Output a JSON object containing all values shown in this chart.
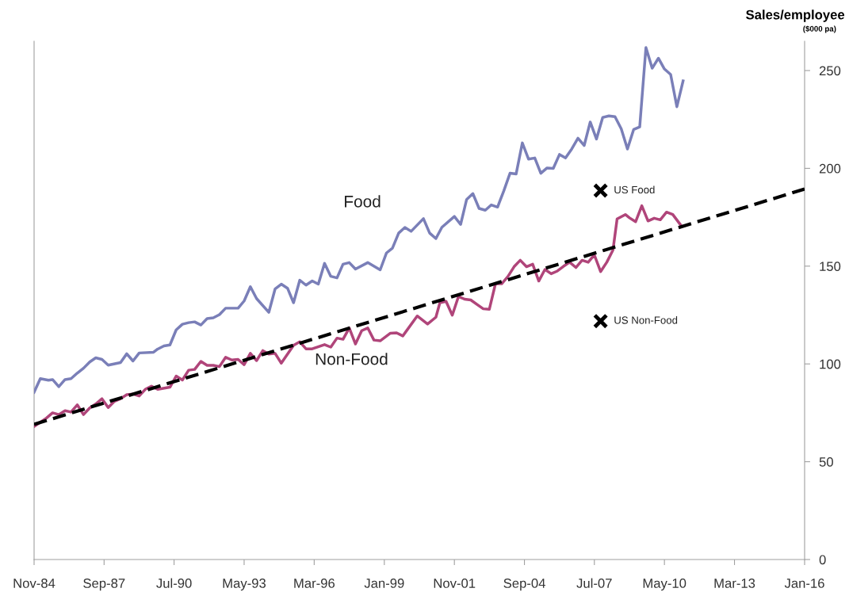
{
  "chart_data": {
    "type": "line",
    "ylabel": "Sales/employee",
    "annotations": [
      "($000 pa)"
    ],
    "xlim": [
      "1984-11",
      "2016-01"
    ],
    "xticks": [
      {
        "value": "1984-11",
        "label": "Nov-84"
      },
      {
        "value": "1987-09",
        "label": "Sep-87"
      },
      {
        "value": "1990-07",
        "label": "Jul-90"
      },
      {
        "value": "1993-05",
        "label": "May-93"
      },
      {
        "value": "1996-03",
        "label": "Mar-96"
      },
      {
        "value": "1999-01",
        "label": "Jan-99"
      },
      {
        "value": "2001-11",
        "label": "Nov-01"
      },
      {
        "value": "2004-09",
        "label": "Sep-04"
      },
      {
        "value": "2007-07",
        "label": "Jul-07"
      },
      {
        "value": "2010-05",
        "label": "May-10"
      },
      {
        "value": "2013-03",
        "label": "Mar-13"
      },
      {
        "value": "2016-01",
        "label": "Jan-16"
      }
    ],
    "ylim": [
      0,
      265
    ],
    "yticks": [
      0,
      50,
      100,
      150,
      200,
      250
    ],
    "grid": false,
    "series": [
      {
        "name": "Food",
        "color": "#7a7fb8",
        "x": [
          "1984-11",
          "1985-02",
          "1985-06",
          "1985-08",
          "1985-11",
          "1986-02",
          "1986-05",
          "1986-08",
          "1986-11",
          "1987-02",
          "1987-05",
          "1987-08",
          "1987-11",
          "1988-05",
          "1988-08",
          "1988-11",
          "1989-02",
          "1989-09",
          "1989-11",
          "1990-02",
          "1990-05",
          "1990-08",
          "1990-11",
          "1991-02",
          "1991-05",
          "1991-08",
          "1991-11",
          "1992-02",
          "1992-05",
          "1992-08",
          "1993-02",
          "1993-05",
          "1993-08",
          "1993-11",
          "1994-05",
          "1994-08",
          "1994-11",
          "1995-02",
          "1995-05",
          "1995-08",
          "1995-11",
          "1996-02",
          "1996-05",
          "1996-08",
          "1996-11",
          "1997-02",
          "1997-05",
          "1997-08",
          "1997-11",
          "1998-05",
          "1998-11",
          "1999-02",
          "1999-05",
          "1999-08",
          "1999-11",
          "2000-02",
          "2000-08",
          "2000-11",
          "2001-02",
          "2001-05",
          "2001-11",
          "2002-02",
          "2002-05",
          "2002-08",
          "2002-11",
          "2003-02",
          "2003-05",
          "2003-08",
          "2003-11",
          "2004-02",
          "2004-05",
          "2004-08",
          "2004-11",
          "2005-02",
          "2005-05",
          "2005-08",
          "2005-11",
          "2006-02",
          "2006-05",
          "2006-08",
          "2006-11",
          "2007-02",
          "2007-05",
          "2007-08",
          "2007-11",
          "2008-02",
          "2008-05",
          "2008-08",
          "2008-11",
          "2009-02",
          "2009-05",
          "2009-08",
          "2009-11",
          "2010-02",
          "2010-05",
          "2010-08",
          "2010-11",
          "2011-02"
        ],
        "values": [
          85.5,
          92.5,
          91.7,
          92,
          88.4,
          92,
          92.5,
          95.3,
          97.8,
          101,
          103.1,
          102.3,
          99.4,
          100.7,
          105.2,
          101.5,
          105.6,
          106,
          107.6,
          109.2,
          109.7,
          117.4,
          120.3,
          121.1,
          121.5,
          119.9,
          123.2,
          123.6,
          125.2,
          128.5,
          128.5,
          132.2,
          139.5,
          133.4,
          126.4,
          138.3,
          140.8,
          138.7,
          131.3,
          142.8,
          140.3,
          142.4,
          140.8,
          151.4,
          144.8,
          144,
          151,
          151.8,
          148.5,
          151.8,
          148.1,
          156.7,
          159.2,
          166.9,
          169.8,
          167.8,
          174.3,
          166.9,
          164.1,
          169.9,
          175.4,
          171.3,
          184.1,
          187.1,
          179.5,
          178.6,
          181.3,
          180.2,
          188.5,
          197.5,
          197.1,
          213,
          204.7,
          205.3,
          197.5,
          200.2,
          200,
          207.1,
          205.3,
          209.9,
          215.4,
          211.7,
          223.7,
          215,
          226,
          226.8,
          226.4,
          220.2,
          209.9,
          219.9,
          221.2,
          261.8,
          251.2,
          256.3,
          250.8,
          248,
          231.5,
          244.7
        ]
      },
      {
        "name": "Non-Food",
        "color": "#b0457a",
        "x": [
          "1984-11",
          "1985-05",
          "1985-08",
          "1985-11",
          "1986-02",
          "1986-05",
          "1986-08",
          "1986-11",
          "1987-02",
          "1987-05",
          "1987-08",
          "1987-11",
          "1988-02",
          "1988-05",
          "1988-08",
          "1988-11",
          "1989-02",
          "1989-05",
          "1989-08",
          "1989-11",
          "1990-05",
          "1990-08",
          "1990-11",
          "1991-02",
          "1991-05",
          "1991-08",
          "1991-11",
          "1992-02",
          "1992-05",
          "1992-08",
          "1992-11",
          "1993-02",
          "1993-05",
          "1993-08",
          "1993-11",
          "1994-02",
          "1994-05",
          "1994-08",
          "1994-11",
          "1995-05",
          "1995-08",
          "1995-11",
          "1996-02",
          "1996-08",
          "1996-11",
          "1997-02",
          "1997-05",
          "1997-08",
          "1997-11",
          "1998-02",
          "1998-05",
          "1998-08",
          "1998-11",
          "1999-04",
          "1999-07",
          "1999-10",
          "2000-05",
          "2000-10",
          "2001-02",
          "2001-04",
          "2001-07",
          "2001-10",
          "2002-01",
          "2002-04",
          "2002-07",
          "2002-10",
          "2003-01",
          "2003-04",
          "2003-07",
          "2003-10",
          "2004-01",
          "2004-04",
          "2004-07",
          "2004-10",
          "2005-01",
          "2005-04",
          "2005-07",
          "2005-10",
          "2006-01",
          "2006-04",
          "2006-07",
          "2006-10",
          "2007-01",
          "2007-04",
          "2007-07",
          "2007-10",
          "2008-01",
          "2008-04",
          "2008-06",
          "2008-10",
          "2008-12",
          "2009-03",
          "2009-06",
          "2009-09",
          "2009-12",
          "2010-03",
          "2010-06",
          "2010-09",
          "2011-01"
        ],
        "values": [
          68,
          72.3,
          75,
          74.1,
          76.1,
          75.4,
          79.1,
          74.1,
          77.5,
          79.5,
          82.2,
          77.7,
          80.9,
          82.2,
          84.3,
          84.6,
          83.6,
          87,
          88.6,
          87,
          88.1,
          93.8,
          91.8,
          96.8,
          97.2,
          101.3,
          99.3,
          99.3,
          98.6,
          103.4,
          102,
          102.3,
          99.6,
          105.4,
          101.7,
          106.8,
          105,
          105.4,
          100.4,
          109.5,
          111.3,
          107.7,
          107.7,
          109.9,
          108.6,
          113.2,
          112.6,
          118.4,
          110.2,
          117,
          118.4,
          112.2,
          111.8,
          115.7,
          115.9,
          114.3,
          124.5,
          120.4,
          123.9,
          131.3,
          132,
          124.9,
          134.5,
          133.1,
          132.7,
          130.4,
          128.2,
          127.9,
          141,
          141,
          144.7,
          149.7,
          153,
          149.7,
          151,
          142.4,
          148.3,
          146.1,
          147.5,
          149.9,
          152,
          149.3,
          153,
          152,
          155.7,
          147.2,
          152,
          158.2,
          174.1,
          176.4,
          174.7,
          172.7,
          180.9,
          173.1,
          174.5,
          173.7,
          177.6,
          176.4,
          170.8
        ]
      },
      {
        "color": "#000000",
        "line_style": "dashed",
        "x": [
          "1984-11",
          "2016-01"
        ],
        "values": [
          69.1,
          189.4
        ]
      },
      {
        "name": "US Food",
        "type": "scatter",
        "marker": "cross",
        "color": "#000000",
        "x": [
          "2007-10"
        ],
        "values": [
          188.6
        ]
      },
      {
        "name": "US Non-Food",
        "type": "scatter",
        "marker": "cross",
        "color": "#000000",
        "x": [
          "2007-10"
        ],
        "values": [
          121.9
        ]
      }
    ]
  }
}
